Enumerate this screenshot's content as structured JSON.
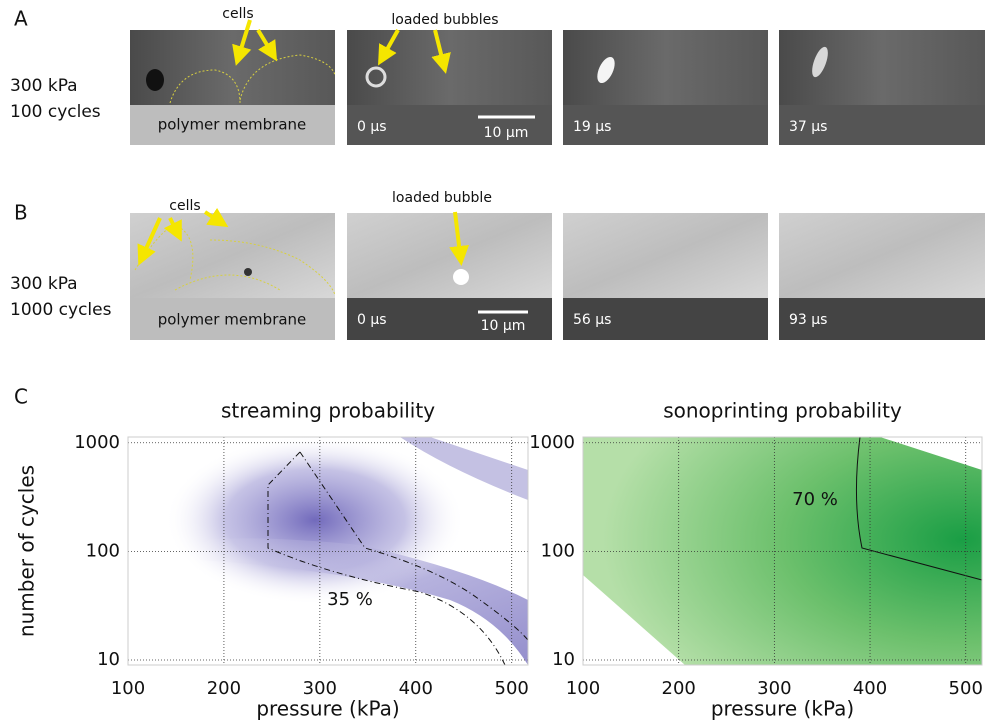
{
  "panel_a": {
    "label": "A",
    "condition": [
      "300 kPa",
      "100 cycles"
    ],
    "annotations": [
      "cells",
      "loaded bubbles"
    ],
    "membrane": "polymer membrane",
    "times": [
      "0 µs",
      "19 µs",
      "37 µs"
    ],
    "scale_bar": "10 µm"
  },
  "panel_b": {
    "label": "B",
    "condition": [
      "300 kPa",
      "1000 cycles"
    ],
    "annotations": [
      "cells",
      "loaded bubble"
    ],
    "membrane": "polymer membrane",
    "times": [
      "0 µs",
      "56 µs",
      "93 µs"
    ],
    "scale_bar": "10 µm"
  },
  "panel_c": {
    "label": "C",
    "charts": [
      {
        "type": "heatmap",
        "title": "streaming probability",
        "xlabel": "pressure (kPa)",
        "ylabel": "number of cycles",
        "xlim": [
          100,
          517
        ],
        "xticks": [
          100,
          200,
          300,
          400,
          500
        ],
        "ylim": [
          9,
          1130
        ],
        "yticks": [
          10,
          100,
          1000
        ],
        "log_y": true,
        "grid": true,
        "contour_label": "35 %",
        "color": "#6a62b8"
      },
      {
        "type": "heatmap",
        "title": "sonoprinting probability",
        "xlabel": "pressure (kPa)",
        "xlim": [
          100,
          517
        ],
        "xticks": [
          100,
          200,
          300,
          400,
          500
        ],
        "ylim": [
          9,
          1130
        ],
        "yticks": [
          10,
          100,
          1000
        ],
        "log_y": true,
        "grid": true,
        "contour_label": "70 %",
        "color": "#1a9e45"
      }
    ]
  }
}
